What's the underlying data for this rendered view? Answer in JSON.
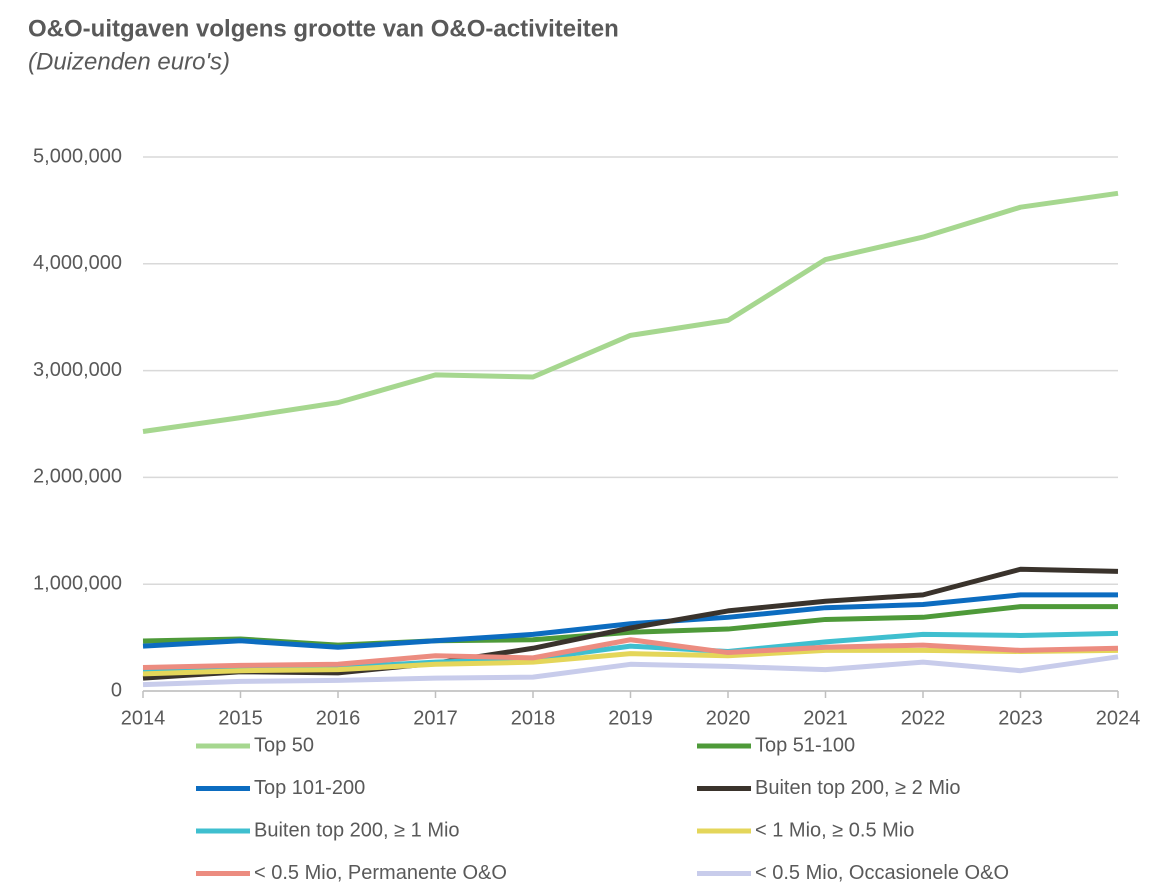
{
  "chart_data": {
    "type": "line",
    "title": "O&O-uitgaven volgens grootte van O&O-activiteiten",
    "subtitle": "(Duizenden euro's)",
    "x": [
      2014,
      2015,
      2016,
      2017,
      2018,
      2019,
      2020,
      2021,
      2022,
      2023,
      2024
    ],
    "xlim": [
      2014,
      2024
    ],
    "xticks": [
      2014,
      2015,
      2016,
      2017,
      2018,
      2019,
      2020,
      2021,
      2022,
      2023,
      2024
    ],
    "ylim": [
      0,
      5000000
    ],
    "yticks": [
      0,
      {
        "value": 1000000,
        "label": "1,000,000"
      },
      {
        "value": 2000000,
        "label": "2,000,000"
      },
      {
        "value": 3000000,
        "label": "3,000,000"
      },
      {
        "value": 4000000,
        "label": "4,000,000"
      },
      {
        "value": 5000000,
        "label": "5,000,000"
      }
    ],
    "grid": true,
    "legend": "bottom",
    "series": [
      {
        "name": "Top 50",
        "color": "#a6d78f",
        "values": [
          2430000,
          2560000,
          2700000,
          2960000,
          2940000,
          3330000,
          3470000,
          4040000,
          4250000,
          4530000,
          4660000
        ]
      },
      {
        "name": "Top 51-100",
        "color": "#4e9a39",
        "values": [
          468000,
          487000,
          430000,
          470000,
          480000,
          550000,
          580000,
          670000,
          690000,
          790000,
          790000
        ]
      },
      {
        "name": "Top 101-200",
        "color": "#0c6cc0",
        "values": [
          420000,
          470000,
          410000,
          470000,
          530000,
          630000,
          690000,
          780000,
          810000,
          900000,
          900000
        ]
      },
      {
        "name": "Buiten top 200, ≥ 2 Mio",
        "color": "#3a332c",
        "values": [
          120000,
          180000,
          170000,
          260000,
          400000,
          590000,
          750000,
          840000,
          900000,
          1140000,
          1120000
        ]
      },
      {
        "name": "Buiten top 200, ≥ 1 Mio",
        "color": "#3fbfcf",
        "values": [
          190000,
          210000,
          220000,
          270000,
          300000,
          420000,
          370000,
          460000,
          530000,
          520000,
          540000
        ]
      },
      {
        "name": "< 1 Mio,  ≥ 0.5 Mio",
        "color": "#e4d65a",
        "values": [
          160000,
          190000,
          200000,
          250000,
          270000,
          350000,
          330000,
          380000,
          380000,
          370000,
          380000
        ]
      },
      {
        "name": "< 0.5 Mio, Permanente O&O",
        "color": "#ec8c80",
        "values": [
          220000,
          240000,
          250000,
          330000,
          310000,
          480000,
          360000,
          410000,
          430000,
          380000,
          400000
        ]
      },
      {
        "name": "< 0.5 Mio, Occasionele O&O",
        "color": "#c8cceb",
        "values": [
          60000,
          90000,
          100000,
          120000,
          130000,
          250000,
          230000,
          200000,
          270000,
          190000,
          320000
        ]
      }
    ]
  }
}
